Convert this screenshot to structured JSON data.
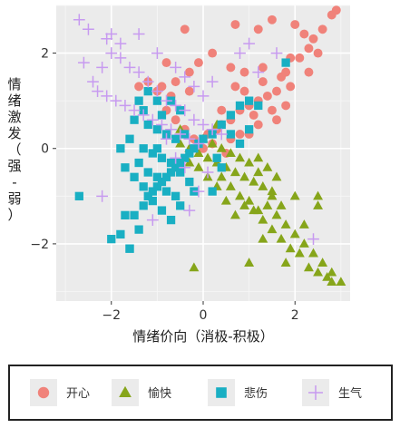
{
  "chart_data": {
    "type": "scatter",
    "xlabel": "情绪价向（消极-积极）",
    "ylabel": "情绪激发（强-弱）",
    "xlim": [
      -3.2,
      3.2
    ],
    "ylim": [
      -3.2,
      3.0
    ],
    "xticks": [
      -2,
      0,
      2
    ],
    "xtick_labels": [
      "−2",
      "0",
      "2"
    ],
    "yticks": [
      -2,
      0,
      2
    ],
    "ytick_labels": [
      "−2",
      "0",
      "2"
    ],
    "grid": true,
    "legend_position": "bottom",
    "series": [
      {
        "name": "开心",
        "color": "#f0827a",
        "marker": "circle",
        "points": [
          [
            0.7,
            2.6
          ],
          [
            1.2,
            2.5
          ],
          [
            1.5,
            2.7
          ],
          [
            2.0,
            2.6
          ],
          [
            2.2,
            2.4
          ],
          [
            2.4,
            2.3
          ],
          [
            2.6,
            2.5
          ],
          [
            2.8,
            2.8
          ],
          [
            2.9,
            2.9
          ],
          [
            2.5,
            2.0
          ],
          [
            2.3,
            2.1
          ],
          [
            2.1,
            1.9
          ],
          [
            -0.4,
            2.5
          ],
          [
            -0.1,
            1.8
          ],
          [
            0.2,
            2.0
          ],
          [
            0.6,
            1.7
          ],
          [
            0.9,
            1.6
          ],
          [
            1.3,
            1.4
          ],
          [
            1.7,
            1.5
          ],
          [
            1.8,
            1.6
          ],
          [
            1.9,
            1.3
          ],
          [
            1.6,
            1.2
          ],
          [
            1.4,
            1.1
          ],
          [
            1.2,
            1.0
          ],
          [
            1.0,
            0.9
          ],
          [
            0.8,
            0.8
          ],
          [
            0.6,
            0.6
          ],
          [
            0.4,
            0.5
          ],
          [
            0.3,
            0.4
          ],
          [
            0.1,
            0.3
          ],
          [
            0.2,
            0.1
          ],
          [
            0.0,
            0.0
          ],
          [
            -0.2,
            0.2
          ],
          [
            -0.4,
            0.4
          ],
          [
            -0.6,
            0.6
          ],
          [
            -0.8,
            0.8
          ],
          [
            -1.0,
            1.2
          ],
          [
            -0.6,
            1.4
          ],
          [
            -0.3,
            1.2
          ],
          [
            0.9,
            1.2
          ],
          [
            1.1,
            0.7
          ],
          [
            1.5,
            0.8
          ],
          [
            1.8,
            0.9
          ],
          [
            1.6,
            0.6
          ],
          [
            1.2,
            0.5
          ],
          [
            0.8,
            0.3
          ],
          [
            0.5,
            -0.1
          ],
          [
            -1.4,
            1.3
          ],
          [
            -1.2,
            1.4
          ],
          [
            -0.9,
            1.3
          ],
          [
            -0.7,
            1.1
          ],
          [
            0.7,
            1.3
          ],
          [
            1.3,
            1.7
          ],
          [
            1.9,
            1.9
          ],
          [
            2.3,
            1.6
          ],
          [
            -0.8,
            1.8
          ],
          [
            -0.3,
            1.6
          ],
          [
            0.4,
            0.8
          ],
          [
            0.6,
            0.2
          ],
          [
            1.0,
            0.3
          ]
        ]
      },
      {
        "name": "愉快",
        "color": "#86a51a",
        "marker": "triangle",
        "points": [
          [
            -0.5,
            0.1
          ],
          [
            -0.3,
            0.0
          ],
          [
            -0.1,
            -0.1
          ],
          [
            0.1,
            -0.2
          ],
          [
            0.3,
            -0.3
          ],
          [
            0.5,
            -0.4
          ],
          [
            0.7,
            -0.5
          ],
          [
            0.9,
            -0.6
          ],
          [
            1.1,
            -0.7
          ],
          [
            1.3,
            -0.8
          ],
          [
            1.5,
            -0.9
          ],
          [
            0.6,
            -0.1
          ],
          [
            0.8,
            -0.2
          ],
          [
            1.0,
            -0.3
          ],
          [
            1.2,
            -0.5
          ],
          [
            0.4,
            -0.6
          ],
          [
            0.6,
            -0.8
          ],
          [
            0.8,
            -1.0
          ],
          [
            1.0,
            -1.1
          ],
          [
            1.2,
            -1.3
          ],
          [
            1.4,
            -1.2
          ],
          [
            1.6,
            -1.4
          ],
          [
            1.8,
            -1.6
          ],
          [
            2.0,
            -1.8
          ],
          [
            2.2,
            -2.0
          ],
          [
            2.4,
            -2.2
          ],
          [
            2.6,
            -2.4
          ],
          [
            2.8,
            -2.6
          ],
          [
            3.0,
            -2.8
          ],
          [
            2.5,
            -2.6
          ],
          [
            2.7,
            -2.7
          ],
          [
            2.3,
            -2.5
          ],
          [
            2.1,
            -2.2
          ],
          [
            1.9,
            -2.1
          ],
          [
            1.7,
            -1.9
          ],
          [
            1.5,
            -1.7
          ],
          [
            1.3,
            -1.5
          ],
          [
            1.1,
            -1.3
          ],
          [
            0.9,
            -1.2
          ],
          [
            0.7,
            -1.4
          ],
          [
            0.5,
            -1.1
          ],
          [
            0.3,
            -0.8
          ],
          [
            0.1,
            -0.6
          ],
          [
            -0.1,
            -0.4
          ],
          [
            -0.3,
            -0.3
          ],
          [
            0.0,
            0.2
          ],
          [
            0.2,
            0.1
          ],
          [
            0.4,
            0.0
          ],
          [
            1.2,
            -0.2
          ],
          [
            1.4,
            -0.4
          ],
          [
            1.6,
            -0.6
          ],
          [
            -0.5,
            0.4
          ],
          [
            0.3,
            0.5
          ],
          [
            1.5,
            -1.0
          ],
          [
            2.5,
            -1.0
          ],
          [
            2.5,
            -1.2
          ],
          [
            2.0,
            -1.0
          ],
          [
            2.2,
            -1.6
          ],
          [
            1.0,
            -2.4
          ],
          [
            -0.2,
            -2.5
          ],
          [
            1.8,
            -2.4
          ],
          [
            1.3,
            -1.9
          ],
          [
            1.7,
            -1.2
          ],
          [
            2.8,
            -2.8
          ]
        ]
      },
      {
        "name": "悲伤",
        "color": "#19afc3",
        "marker": "square",
        "points": [
          [
            -2.7,
            -1.0
          ],
          [
            -2.0,
            -1.9
          ],
          [
            -1.8,
            -1.8
          ],
          [
            -1.6,
            -2.1
          ],
          [
            -1.5,
            -1.4
          ],
          [
            -1.7,
            -1.4
          ],
          [
            -1.3,
            -1.2
          ],
          [
            -1.2,
            -1.0
          ],
          [
            -1.1,
            -0.9
          ],
          [
            -1.0,
            -0.8
          ],
          [
            -0.9,
            -0.7
          ],
          [
            -0.8,
            -0.6
          ],
          [
            -0.7,
            -0.5
          ],
          [
            -0.6,
            -0.4
          ],
          [
            -0.5,
            -0.3
          ],
          [
            -0.4,
            -0.2
          ],
          [
            -0.3,
            -0.1
          ],
          [
            -0.2,
            0.0
          ],
          [
            -0.1,
            0.1
          ],
          [
            0.0,
            0.2
          ],
          [
            0.2,
            0.3
          ],
          [
            0.4,
            0.5
          ],
          [
            0.6,
            0.7
          ],
          [
            0.8,
            0.9
          ],
          [
            1.0,
            1.0
          ],
          [
            1.2,
            0.9
          ],
          [
            1.8,
            1.8
          ],
          [
            1.0,
            0.4
          ],
          [
            -1.2,
            0.5
          ],
          [
            -1.0,
            0.4
          ],
          [
            -0.8,
            0.3
          ],
          [
            -0.6,
            0.2
          ],
          [
            -0.4,
            0.3
          ],
          [
            -1.3,
            0.0
          ],
          [
            -1.1,
            -0.1
          ],
          [
            -0.9,
            -0.2
          ],
          [
            -0.7,
            -0.3
          ],
          [
            -0.5,
            -0.5
          ],
          [
            -0.3,
            -0.7
          ],
          [
            -0.2,
            -0.9
          ],
          [
            -1.4,
            -0.3
          ],
          [
            -1.2,
            -0.5
          ],
          [
            -1.0,
            -0.6
          ],
          [
            -0.8,
            -0.9
          ],
          [
            -0.6,
            -1.0
          ],
          [
            -1.6,
            0.2
          ],
          [
            -1.5,
            -0.6
          ],
          [
            -1.3,
            -0.8
          ],
          [
            -1.1,
            -1.1
          ],
          [
            -0.9,
            -1.3
          ],
          [
            -0.7,
            -1.5
          ],
          [
            -0.5,
            -1.2
          ],
          [
            -1.4,
            1.0
          ],
          [
            -1.2,
            1.2
          ],
          [
            -1.0,
            1.0
          ],
          [
            -0.9,
            0.7
          ],
          [
            -0.7,
            1.0
          ],
          [
            -0.5,
            0.8
          ],
          [
            -1.5,
            0.6
          ],
          [
            -1.3,
            0.8
          ],
          [
            -1.7,
            -0.4
          ],
          [
            -1.4,
            -1.7
          ],
          [
            -1.6,
            -2.1
          ],
          [
            0.6,
            0.3
          ],
          [
            0.8,
            0.1
          ],
          [
            0.3,
            -0.2
          ],
          [
            0.4,
            -0.4
          ],
          [
            0.2,
            -0.9
          ],
          [
            -1.8,
            0.0
          ],
          [
            -1.0,
            0.0
          ]
        ]
      },
      {
        "name": "生气",
        "color": "#c79af0",
        "marker": "plus",
        "points": [
          [
            -2.7,
            2.7
          ],
          [
            -2.5,
            2.5
          ],
          [
            -2.1,
            2.3
          ],
          [
            -2.0,
            2.0
          ],
          [
            -1.8,
            1.9
          ],
          [
            -1.6,
            1.7
          ],
          [
            -1.4,
            1.6
          ],
          [
            -1.2,
            1.4
          ],
          [
            -1.0,
            1.2
          ],
          [
            -0.8,
            1.0
          ],
          [
            -0.6,
            0.9
          ],
          [
            -0.4,
            0.8
          ],
          [
            -0.2,
            0.6
          ],
          [
            0.0,
            0.5
          ],
          [
            0.2,
            0.4
          ],
          [
            0.4,
            0.3
          ],
          [
            -1.4,
            2.4
          ],
          [
            -1.0,
            2.0
          ],
          [
            -2.2,
            1.7
          ],
          [
            -2.4,
            1.4
          ],
          [
            -2.3,
            1.2
          ],
          [
            -2.1,
            1.1
          ],
          [
            -1.9,
            1.0
          ],
          [
            -1.7,
            0.9
          ],
          [
            -1.5,
            0.8
          ],
          [
            -1.3,
            0.7
          ],
          [
            -1.1,
            0.6
          ],
          [
            -0.9,
            0.5
          ],
          [
            -0.7,
            0.4
          ],
          [
            -0.5,
            0.3
          ],
          [
            -0.3,
            0.2
          ],
          [
            -0.1,
            0.1
          ],
          [
            -2.2,
            -1.0
          ],
          [
            -1.1,
            -1.5
          ],
          [
            -0.3,
            -1.3
          ],
          [
            -0.1,
            -0.9
          ],
          [
            0.1,
            -0.5
          ],
          [
            1.2,
            1.6
          ],
          [
            1.6,
            2.0
          ],
          [
            0.2,
            1.4
          ],
          [
            2.4,
            -1.9
          ],
          [
            0.8,
            2.0
          ],
          [
            1.0,
            2.2
          ],
          [
            -0.6,
            1.7
          ],
          [
            -0.4,
            1.5
          ],
          [
            -0.2,
            1.3
          ],
          [
            0.0,
            1.1
          ],
          [
            -1.8,
            2.2
          ],
          [
            -2.0,
            2.4
          ],
          [
            -2.6,
            1.8
          ],
          [
            -0.8,
            0.2
          ],
          [
            -0.6,
            -0.2
          ],
          [
            -0.4,
            -0.4
          ]
        ]
      }
    ]
  }
}
